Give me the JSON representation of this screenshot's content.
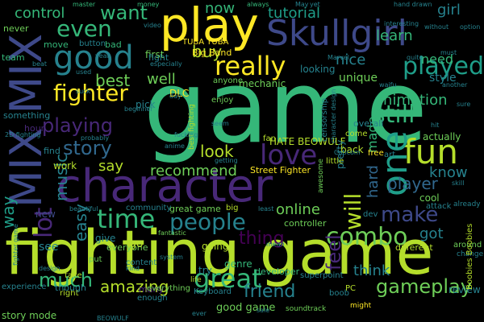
{
  "palette": {
    "background": "#000000",
    "colors": [
      "#fde725",
      "#b5de2b",
      "#6ece58",
      "#35b779",
      "#1f9e89",
      "#26828e",
      "#31688e",
      "#3e4989",
      "#482878",
      "#440154"
    ]
  },
  "words": [
    {
      "text": "game"
    },
    {
      "text": "fighting game"
    },
    {
      "text": "character"
    },
    {
      "text": "play"
    },
    {
      "text": "Skullgirl"
    },
    {
      "text": "MIX MIX"
    },
    {
      "text": "good"
    },
    {
      "text": "fun"
    },
    {
      "text": "one"
    },
    {
      "text": "love"
    },
    {
      "text": "combo"
    },
    {
      "text": "great"
    },
    {
      "text": "time"
    },
    {
      "text": "people"
    },
    {
      "text": "really"
    },
    {
      "text": "played"
    },
    {
      "text": "fighter"
    },
    {
      "text": "still"
    },
    {
      "text": "even"
    },
    {
      "text": "want"
    },
    {
      "text": "lot"
    },
    {
      "text": "story"
    },
    {
      "text": "playing"
    },
    {
      "text": "animation"
    },
    {
      "text": "make"
    },
    {
      "text": "much"
    },
    {
      "text": "gameplay"
    },
    {
      "text": "amazing"
    },
    {
      "text": "friend"
    },
    {
      "text": "feel"
    },
    {
      "text": "will"
    },
    {
      "text": "best"
    },
    {
      "text": "well"
    },
    {
      "text": "tutorial"
    },
    {
      "text": "learn"
    },
    {
      "text": "control"
    },
    {
      "text": "buy"
    },
    {
      "text": "now"
    },
    {
      "text": "look"
    },
    {
      "text": "recommend"
    },
    {
      "text": "say"
    },
    {
      "text": "music"
    },
    {
      "text": "thing"
    },
    {
      "text": "online"
    },
    {
      "text": "player"
    },
    {
      "text": "know"
    },
    {
      "text": "need"
    },
    {
      "text": "nice"
    },
    {
      "text": "girl"
    },
    {
      "text": "style"
    },
    {
      "text": "way"
    },
    {
      "text": "easy"
    },
    {
      "text": "hard"
    },
    {
      "text": "made"
    },
    {
      "text": "think"
    },
    {
      "text": "got"
    },
    {
      "text": "actually"
    },
    {
      "text": "unique"
    },
    {
      "text": "looking"
    },
    {
      "text": "Big Band"
    },
    {
      "text": "DLC"
    },
    {
      "text": "mechanic"
    },
    {
      "text": "HATE BEOWULF"
    },
    {
      "text": "Street Fighter"
    },
    {
      "text": "good game"
    },
    {
      "text": "great game"
    },
    {
      "text": "story mode"
    },
    {
      "text": "TUBA TUBA"
    },
    {
      "text": "overall"
    },
    {
      "text": "review"
    },
    {
      "text": "everyone"
    },
    {
      "text": "give"
    },
    {
      "text": "go"
    },
    {
      "text": "new"
    },
    {
      "text": "see"
    },
    {
      "text": "work"
    },
    {
      "text": "find"
    },
    {
      "text": "first"
    },
    {
      "text": "fight"
    },
    {
      "text": "hour"
    },
    {
      "text": "pretty"
    },
    {
      "text": "cool"
    },
    {
      "text": "dev"
    },
    {
      "text": "different"
    },
    {
      "text": "move"
    },
    {
      "text": "team"
    },
    {
      "text": "button"
    },
    {
      "text": "bad"
    },
    {
      "text": "never"
    },
    {
      "text": "pick"
    },
    {
      "text": "something"
    },
    {
      "text": "right"
    },
    {
      "text": "come"
    },
    {
      "text": "back"
    },
    {
      "text": "fan"
    },
    {
      "text": "anyone"
    },
    {
      "text": "enjoy"
    },
    {
      "text": "genre"
    },
    {
      "text": "try"
    },
    {
      "text": "going"
    },
    {
      "text": "take"
    },
    {
      "text": "though"
    },
    {
      "text": "put"
    },
    {
      "text": "many"
    },
    {
      "text": "experience"
    },
    {
      "text": "developer"
    },
    {
      "text": "controller"
    },
    {
      "text": "little"
    },
    {
      "text": "free"
    },
    {
      "text": "art"
    },
    {
      "text": "attack"
    },
    {
      "text": "content"
    },
    {
      "text": "community"
    },
    {
      "text": "big"
    },
    {
      "text": "Keyboard"
    },
    {
      "text": "boob"
    },
    {
      "text": "point"
    },
    {
      "text": "PC"
    },
    {
      "text": "super"
    },
    {
      "text": "everything"
    },
    {
      "text": "enough"
    },
    {
      "text": "life"
    },
    {
      "text": "soundtrack"
    },
    {
      "text": "might"
    },
    {
      "text": "already"
    },
    {
      "text": "around"
    },
    {
      "text": "change"
    },
    {
      "text": "Boobies Boobies"
    },
    {
      "text": "option"
    },
    {
      "text": "without"
    },
    {
      "text": "interesting"
    },
    {
      "text": "hand drawn"
    },
    {
      "text": "always"
    },
    {
      "text": "master"
    },
    {
      "text": "money"
    },
    {
      "text": "especially"
    },
    {
      "text": "Marvel"
    },
    {
      "text": "waifu"
    },
    {
      "text": "another"
    },
    {
      "text": "hit"
    },
    {
      "text": "sure"
    },
    {
      "text": "quite"
    },
    {
      "text": "censorship"
    },
    {
      "text": "character design"
    },
    {
      "text": "best fighting"
    },
    {
      "text": "fucking"
    },
    {
      "text": "beginner"
    },
    {
      "text": "anime"
    },
    {
      "text": "fantastic"
    },
    {
      "text": "system"
    },
    {
      "text": "beautiful"
    },
    {
      "text": "design"
    },
    {
      "text": "probably"
    },
    {
      "text": "2D fighting"
    },
    {
      "text": "used"
    },
    {
      "text": "day"
    },
    {
      "text": "seem"
    },
    {
      "text": "getting"
    },
    {
      "text": "awesome"
    },
    {
      "text": "Capcom"
    },
    {
      "text": "year"
    },
    {
      "text": "suck"
    },
    {
      "text": "beat"
    },
    {
      "text": "video"
    },
    {
      "text": "May"
    },
    {
      "text": "yet"
    },
    {
      "text": "least"
    },
    {
      "text": "mean"
    },
    {
      "text": "sale"
    },
    {
      "text": "fighter game"
    },
    {
      "text": "must"
    },
    {
      "text": "BEOWULF"
    },
    {
      "text": "ever"
    },
    {
      "text": "kind"
    },
    {
      "text": "skill"
    },
    {
      "text": "able"
    }
  ]
}
